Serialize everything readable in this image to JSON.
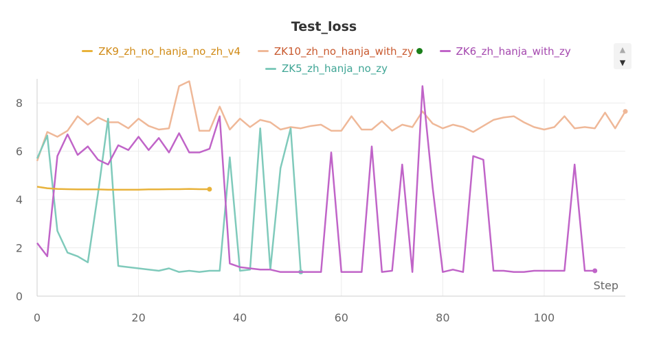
{
  "chart_data": {
    "type": "line",
    "title": "Test_loss",
    "xlabel": "Step",
    "ylabel": "",
    "xlim": [
      0,
      116
    ],
    "ylim": [
      0,
      9
    ],
    "xticks": [
      0,
      20,
      40,
      60,
      80,
      100
    ],
    "yticks": [
      0,
      2,
      4,
      6,
      8
    ],
    "grid": true,
    "legend_position": "top",
    "series": [
      {
        "name": "ZK9_zh_no_hanja_no_zh_v4",
        "color": "#e8b23a",
        "x": [
          0,
          2,
          4,
          6,
          8,
          10,
          12,
          14,
          16,
          18,
          20,
          22,
          24,
          26,
          28,
          30,
          32,
          34
        ],
        "y": [
          4.53,
          4.47,
          4.44,
          4.43,
          4.42,
          4.42,
          4.42,
          4.41,
          4.41,
          4.41,
          4.41,
          4.42,
          4.42,
          4.43,
          4.43,
          4.44,
          4.43,
          4.43
        ]
      },
      {
        "name": "ZK10_zh_no_hanja_with_zy",
        "color": "#efb898",
        "marker_color": "#1a7f1a",
        "x": [
          0,
          2,
          4,
          6,
          8,
          10,
          12,
          14,
          16,
          18,
          20,
          22,
          24,
          26,
          28,
          30,
          32,
          34,
          36,
          38,
          40,
          42,
          44,
          46,
          48,
          50,
          52,
          54,
          56,
          58,
          60,
          62,
          64,
          66,
          68,
          70,
          72,
          74,
          76,
          78,
          80,
          82,
          84,
          86,
          88,
          90,
          92,
          94,
          96,
          98,
          100,
          102,
          104,
          106,
          108,
          110,
          112,
          114,
          116
        ],
        "y": [
          5.6,
          6.8,
          6.6,
          6.85,
          7.45,
          7.1,
          7.4,
          7.2,
          7.2,
          6.95,
          7.35,
          7.05,
          6.9,
          6.95,
          8.7,
          8.9,
          6.85,
          6.85,
          7.85,
          6.9,
          7.35,
          7.0,
          7.3,
          7.2,
          6.9,
          7.0,
          6.95,
          7.05,
          7.1,
          6.85,
          6.85,
          7.45,
          6.9,
          6.9,
          7.25,
          6.85,
          7.1,
          7.0,
          7.65,
          7.15,
          6.95,
          7.1,
          7.0,
          6.8,
          7.05,
          7.3,
          7.4,
          7.45,
          7.2,
          7.0,
          6.9,
          7.0,
          7.45,
          6.95,
          7.0,
          6.95,
          7.6,
          6.95,
          7.65
        ]
      },
      {
        "name": "ZK6_zh_hanja_with_zy",
        "color": "#c064c8",
        "x": [
          0,
          2,
          4,
          6,
          8,
          10,
          12,
          14,
          16,
          18,
          20,
          22,
          24,
          26,
          28,
          30,
          32,
          34,
          36,
          38,
          40,
          42,
          44,
          46,
          48,
          50,
          52,
          54,
          56,
          58,
          60,
          62,
          64,
          66,
          68,
          70,
          72,
          74,
          76,
          78,
          80,
          82,
          84,
          86,
          88,
          90,
          92,
          94,
          96,
          98,
          100,
          102,
          104,
          106,
          108,
          110
        ],
        "y": [
          2.2,
          1.65,
          5.8,
          6.7,
          5.85,
          6.2,
          5.65,
          5.45,
          6.25,
          6.05,
          6.6,
          6.05,
          6.55,
          5.95,
          6.75,
          5.95,
          5.95,
          6.1,
          7.45,
          1.35,
          1.2,
          1.15,
          1.1,
          1.1,
          1.0,
          1.0,
          1.0,
          1.0,
          1.0,
          5.95,
          1.0,
          1.0,
          1.0,
          6.2,
          1.0,
          1.05,
          5.45,
          1.0,
          8.7,
          4.5,
          1.0,
          1.1,
          1.0,
          5.8,
          5.65,
          1.05,
          1.05,
          1.0,
          1.0,
          1.05,
          1.05,
          1.05,
          1.05,
          5.45,
          1.05,
          1.05
        ]
      },
      {
        "name": "ZK5_zh_hanja_no_zy",
        "color": "#7fcabb",
        "x": [
          0,
          2,
          4,
          6,
          8,
          10,
          12,
          14,
          16,
          18,
          20,
          22,
          24,
          26,
          28,
          30,
          32,
          34,
          36,
          38,
          40,
          42,
          44,
          46,
          48,
          50,
          52
        ],
        "y": [
          5.7,
          6.65,
          2.7,
          1.8,
          1.65,
          1.4,
          4.25,
          7.35,
          1.25,
          1.2,
          1.15,
          1.1,
          1.05,
          1.15,
          1.0,
          1.05,
          1.0,
          1.05,
          1.05,
          5.75,
          1.05,
          1.1,
          6.95,
          1.1,
          5.3,
          6.95,
          1.0
        ]
      }
    ]
  },
  "legend": {
    "items": [
      {
        "label": "ZK9_zh_no_hanja_no_zh_v4",
        "color": "#e8b23a",
        "text_color": "#d08a16"
      },
      {
        "label": "ZK10_zh_no_hanja_with_zy",
        "color": "#efb898",
        "text_color": "#c8582d",
        "dot_color": "#1a7f1a"
      },
      {
        "label": "ZK6_zh_hanja_with_zy",
        "color": "#c064c8",
        "text_color": "#a447ae"
      },
      {
        "label": "ZK5_zh_hanja_no_zy",
        "color": "#7fcabb",
        "text_color": "#3fa595"
      }
    ]
  },
  "scroller": {
    "up_icon": "▲",
    "down_icon": "▼"
  }
}
